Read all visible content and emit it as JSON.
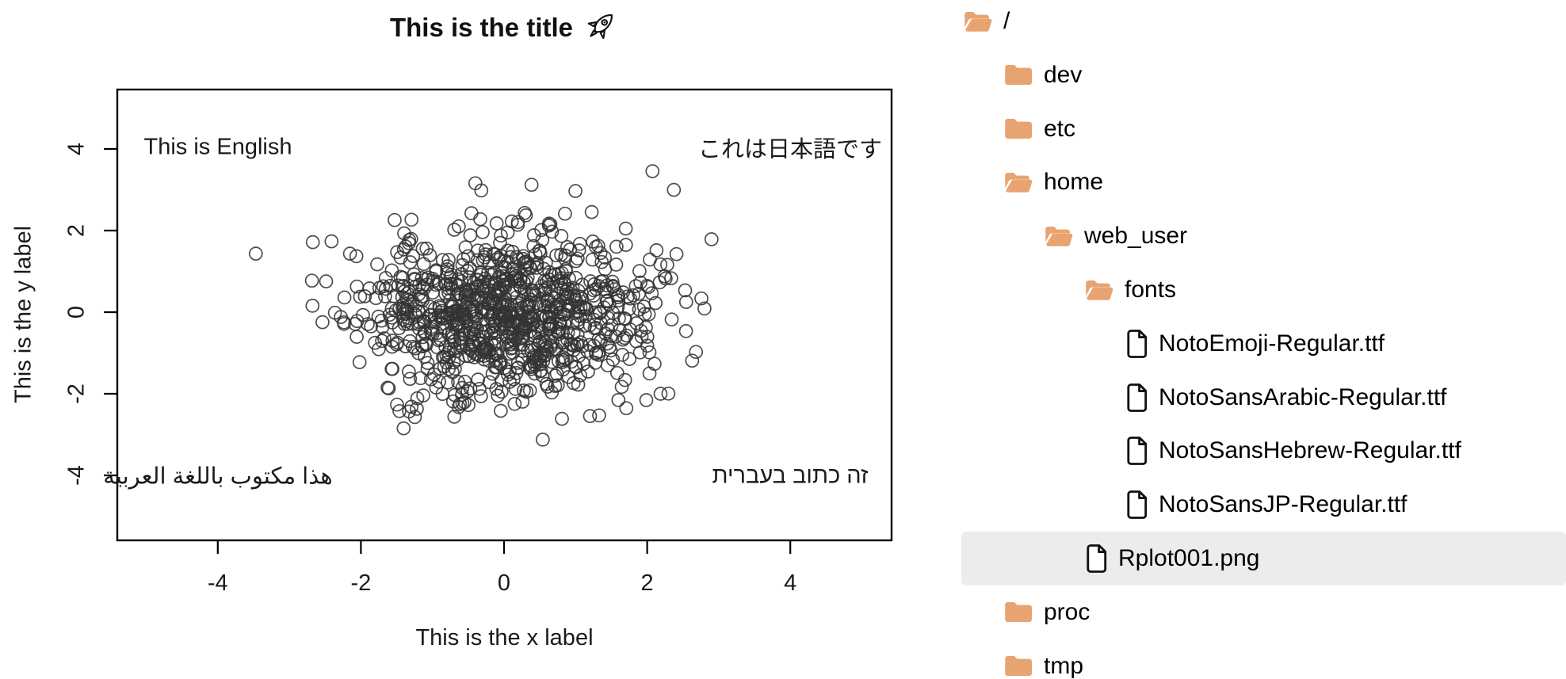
{
  "window": {
    "background": "#ffffff"
  },
  "chart_data": {
    "type": "scatter",
    "title": "This is the title",
    "title_emoji": "🚀",
    "title_emoji_name": "rocket",
    "xlabel": "This is the x label",
    "ylabel": "This is the y label",
    "x_ticks": [
      -4,
      -2,
      0,
      2,
      4
    ],
    "y_ticks": [
      -4,
      -2,
      0,
      2,
      4
    ],
    "xlim": [
      -5.4,
      5.4
    ],
    "ylim": [
      -5.5,
      5.6
    ],
    "grid": false,
    "legend": null,
    "points": {
      "n": 1000,
      "distribution": "bivariate normal, mean 0, sd 1 on both axes",
      "seed": 11,
      "marker": "open-circle",
      "marker_radius_px": 8,
      "color": "#333333"
    },
    "annotations": [
      {
        "text": "This is English",
        "lang": "en",
        "x": -4,
        "y": 4
      },
      {
        "text": "これは日本語です",
        "lang": "ja",
        "x": 4,
        "y": 4
      },
      {
        "text": "هذا مكتوب باللغة العربية",
        "lang": "ar",
        "x": -4,
        "y": -4
      },
      {
        "text": "זה כתוב בעברית",
        "lang": "he",
        "x": 4,
        "y": -4
      }
    ],
    "frame": "box",
    "background": "#ffffff"
  },
  "file_tree": {
    "selected_item": "Rplot001.png",
    "colors": {
      "folder": "#E8A470",
      "selection_background": "#ECECEC",
      "file_icon_outline": "#111111",
      "text": "#000000"
    },
    "items": [
      {
        "name": "/",
        "type": "folder-open",
        "level": 0
      },
      {
        "name": "dev",
        "type": "folder",
        "level": 1
      },
      {
        "name": "etc",
        "type": "folder",
        "level": 1
      },
      {
        "name": "home",
        "type": "folder-open",
        "level": 1
      },
      {
        "name": "web_user",
        "type": "folder-open",
        "level": 2
      },
      {
        "name": "fonts",
        "type": "folder-open",
        "level": 3
      },
      {
        "name": "NotoEmoji-Regular.ttf",
        "type": "file",
        "level": 4
      },
      {
        "name": "NotoSansArabic-Regular.ttf",
        "type": "file",
        "level": 4
      },
      {
        "name": "NotoSansHebrew-Regular.ttf",
        "type": "file",
        "level": 4
      },
      {
        "name": "NotoSansJP-Regular.ttf",
        "type": "file",
        "level": 4
      },
      {
        "name": "Rplot001.png",
        "type": "file",
        "level": 3,
        "selected": true
      },
      {
        "name": "proc",
        "type": "folder",
        "level": 1
      },
      {
        "name": "tmp",
        "type": "folder",
        "level": 1
      }
    ]
  }
}
